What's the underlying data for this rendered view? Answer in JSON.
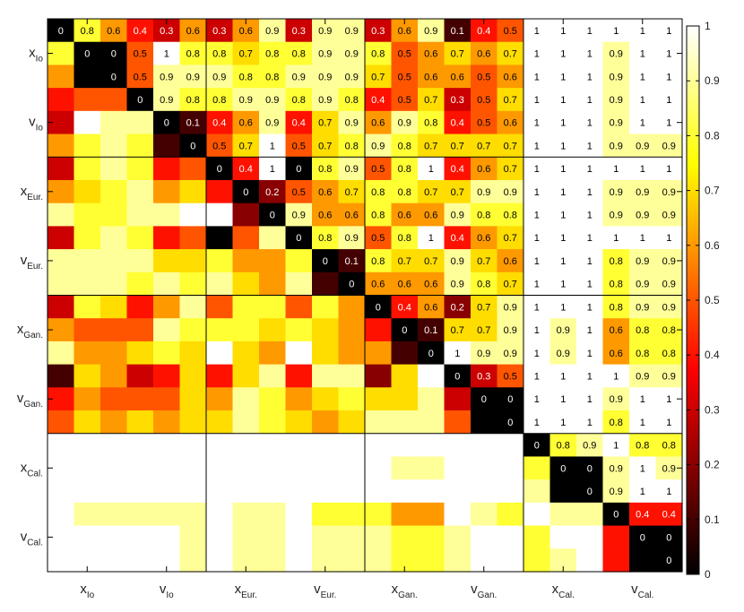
{
  "chart_data": {
    "type": "heatmap",
    "colormap": "hot",
    "value_range": [
      0,
      1
    ],
    "groups": [
      {
        "base": "x",
        "sub": "Io"
      },
      {
        "base": "v",
        "sub": "Io"
      },
      {
        "base": "x",
        "sub": "Eur."
      },
      {
        "base": "v",
        "sub": "Eur."
      },
      {
        "base": "x",
        "sub": "Gan."
      },
      {
        "base": "v",
        "sub": "Gan."
      },
      {
        "base": "x",
        "sub": "Cal."
      },
      {
        "base": "v",
        "sub": "Cal."
      }
    ],
    "colorbar_ticks": [
      "0",
      "0.1",
      "0.2",
      "0.3",
      "0.4",
      "0.5",
      "0.6",
      "0.7",
      "0.8",
      "0.9",
      "1"
    ],
    "values": [
      [
        0,
        0.8,
        0.6,
        0.4,
        0.3,
        0.6,
        0.3,
        0.6,
        0.9,
        0.3,
        0.9,
        0.9,
        0.3,
        0.6,
        0.9,
        0.1,
        0.4,
        0.5,
        1,
        1,
        1,
        1,
        1,
        1
      ],
      [
        0.8,
        0,
        0,
        0.5,
        1,
        0.8,
        0.8,
        0.7,
        0.8,
        0.8,
        0.9,
        0.9,
        0.8,
        0.5,
        0.6,
        0.7,
        0.6,
        0.7,
        1,
        1,
        1,
        0.9,
        1,
        1
      ],
      [
        0.6,
        0,
        0,
        0.5,
        0.9,
        0.9,
        0.9,
        0.8,
        0.8,
        0.9,
        0.9,
        0.9,
        0.7,
        0.5,
        0.6,
        0.6,
        0.5,
        0.6,
        1,
        1,
        1,
        0.9,
        1,
        1
      ],
      [
        0.4,
        0.5,
        0.5,
        0,
        0.9,
        0.8,
        0.8,
        0.9,
        0.9,
        0.8,
        0.9,
        0.8,
        0.4,
        0.5,
        0.7,
        0.3,
        0.5,
        0.7,
        1,
        1,
        1,
        0.9,
        1,
        1
      ],
      [
        0.3,
        1,
        0.9,
        0.9,
        0,
        0.1,
        0.4,
        0.6,
        0.9,
        0.4,
        0.7,
        0.9,
        0.6,
        0.9,
        0.8,
        0.4,
        0.5,
        0.6,
        1,
        1,
        1,
        0.9,
        1,
        1
      ],
      [
        0.6,
        0.8,
        0.9,
        0.8,
        0.1,
        0,
        0.5,
        0.7,
        1,
        0.5,
        0.7,
        0.8,
        0.9,
        0.8,
        0.7,
        0.7,
        0.7,
        0.7,
        1,
        1,
        1,
        0.9,
        0.9,
        0.9
      ],
      [
        0.3,
        0.8,
        0.9,
        0.8,
        0.4,
        0.5,
        0,
        0.4,
        1,
        0,
        0.8,
        0.9,
        0.5,
        0.8,
        1,
        0.4,
        0.6,
        0.7,
        1,
        1,
        1,
        1,
        1,
        1
      ],
      [
        0.6,
        0.7,
        0.8,
        0.9,
        0.6,
        0.7,
        0.4,
        0,
        0.2,
        0.5,
        0.6,
        0.7,
        0.8,
        0.8,
        0.7,
        0.7,
        0.9,
        0.9,
        1,
        1,
        1,
        0.9,
        0.9,
        0.9
      ],
      [
        0.9,
        0.8,
        0.8,
        0.9,
        0.9,
        1,
        1,
        0.2,
        0,
        0.9,
        0.6,
        0.6,
        0.8,
        0.6,
        0.6,
        0.9,
        0.8,
        0.8,
        1,
        1,
        1,
        0.9,
        0.9,
        0.9
      ],
      [
        0.3,
        0.8,
        0.9,
        0.8,
        0.4,
        0.5,
        0,
        0.5,
        0.9,
        0,
        0.8,
        0.9,
        0.5,
        0.8,
        1,
        0.4,
        0.6,
        0.7,
        1,
        1,
        1,
        1,
        1,
        1
      ],
      [
        0.9,
        0.9,
        0.9,
        0.9,
        0.7,
        0.7,
        0.8,
        0.6,
        0.6,
        0.8,
        0,
        0.1,
        0.8,
        0.7,
        0.7,
        0.9,
        0.7,
        0.6,
        1,
        1,
        1,
        0.8,
        0.9,
        0.9
      ],
      [
        0.9,
        0.9,
        0.9,
        0.8,
        0.9,
        0.8,
        0.9,
        0.7,
        0.6,
        0.9,
        0.1,
        0,
        0.6,
        0.6,
        0.6,
        0.9,
        0.8,
        0.7,
        1,
        1,
        1,
        0.8,
        0.9,
        0.9
      ],
      [
        0.3,
        0.8,
        0.7,
        0.4,
        0.6,
        0.9,
        0.5,
        0.8,
        0.8,
        0.5,
        0.8,
        0.6,
        0,
        0.4,
        0.6,
        0.2,
        0.7,
        0.9,
        1,
        1,
        1,
        0.8,
        0.9,
        0.9
      ],
      [
        0.6,
        0.5,
        0.5,
        0.5,
        0.9,
        0.8,
        0.8,
        0.8,
        0.7,
        0.8,
        0.7,
        0.6,
        0.4,
        0,
        0.1,
        0.7,
        0.7,
        0.9,
        1,
        0.9,
        1,
        0.6,
        0.8,
        0.8
      ],
      [
        0.9,
        0.6,
        0.6,
        0.7,
        0.8,
        0.7,
        1,
        0.7,
        0.6,
        1,
        0.7,
        0.6,
        0.6,
        0.1,
        0,
        1,
        0.9,
        0.9,
        1,
        0.9,
        1,
        0.6,
        0.8,
        0.8
      ],
      [
        0.1,
        0.7,
        0.6,
        0.3,
        0.4,
        0.7,
        0.4,
        0.7,
        0.9,
        0.4,
        0.9,
        0.9,
        0.2,
        0.7,
        1,
        0,
        0.3,
        0.5,
        1,
        1,
        1,
        1,
        0.9,
        0.9
      ],
      [
        0.4,
        0.6,
        0.5,
        0.5,
        0.5,
        0.7,
        0.6,
        0.9,
        0.8,
        0.6,
        0.7,
        0.8,
        0.7,
        0.7,
        0.9,
        0.3,
        0,
        0,
        1,
        1,
        1,
        0.9,
        1,
        1
      ],
      [
        0.5,
        0.7,
        0.6,
        0.7,
        0.6,
        0.7,
        0.7,
        0.9,
        0.8,
        0.7,
        0.6,
        0.7,
        0.9,
        0.9,
        0.9,
        0.5,
        0,
        0,
        1,
        1,
        1,
        0.8,
        1,
        1
      ],
      [
        1,
        1,
        1,
        1,
        1,
        1,
        1,
        1,
        1,
        1,
        1,
        1,
        1,
        1,
        1,
        1,
        1,
        1,
        0,
        0.8,
        0.9,
        1,
        0.8,
        0.8
      ],
      [
        1,
        1,
        1,
        1,
        1,
        1,
        1,
        1,
        1,
        1,
        1,
        1,
        1,
        0.9,
        0.9,
        1,
        1,
        1,
        0.8,
        0,
        0,
        0.9,
        1,
        0.9
      ],
      [
        1,
        1,
        1,
        1,
        1,
        1,
        1,
        1,
        1,
        1,
        1,
        1,
        1,
        1,
        1,
        1,
        1,
        1,
        0.9,
        0,
        0,
        0.9,
        1,
        1
      ],
      [
        1,
        0.9,
        0.9,
        0.9,
        0.9,
        0.9,
        1,
        0.9,
        0.9,
        1,
        0.8,
        0.8,
        0.8,
        0.6,
        0.6,
        1,
        0.9,
        0.8,
        1,
        0.9,
        0.9,
        0,
        0.4,
        0.4
      ],
      [
        1,
        1,
        1,
        1,
        1,
        0.9,
        1,
        0.9,
        0.9,
        1,
        0.9,
        0.9,
        0.9,
        0.8,
        0.8,
        0.9,
        1,
        1,
        0.8,
        1,
        1,
        0.4,
        0,
        0
      ],
      [
        1,
        1,
        1,
        1,
        1,
        0.9,
        1,
        0.9,
        0.9,
        1,
        0.9,
        0.9,
        0.9,
        0.8,
        0.8,
        0.9,
        1,
        1,
        0.8,
        0.9,
        1,
        0.4,
        0,
        0
      ]
    ]
  }
}
